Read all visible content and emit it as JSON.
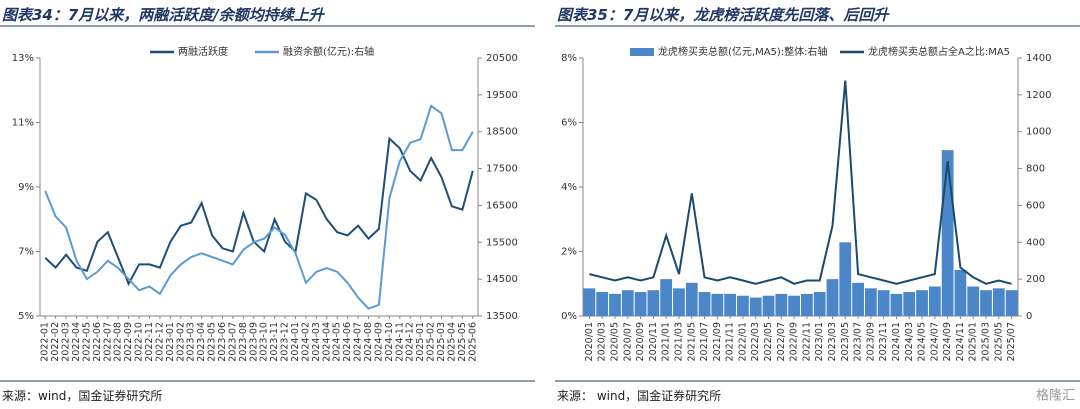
{
  "chart_data": [
    {
      "type": "line",
      "title": "图表34：7月以来，两融活跃度/余额均持续上升",
      "source": "来源：wind，国金证券研究所",
      "categories": [
        "2022-01",
        "2022-02",
        "2022-03",
        "2022-04",
        "2022-05",
        "2022-06",
        "2022-07",
        "2022-08",
        "2022-09",
        "2022-10",
        "2022-11",
        "2022-12",
        "2023-01",
        "2023-02",
        "2023-03",
        "2023-04",
        "2023-05",
        "2023-06",
        "2023-07",
        "2023-08",
        "2023-09",
        "2023-10",
        "2023-11",
        "2023-12",
        "2024-01",
        "2024-02",
        "2024-03",
        "2024-04",
        "2024-05",
        "2024-06",
        "2024-07",
        "2024-08",
        "2024-09",
        "2024-10",
        "2024-11",
        "2024-12",
        "2025-01",
        "2025-02",
        "2025-03",
        "2025-04",
        "2025-05",
        "2025-06"
      ],
      "series": [
        {
          "name": "两融活跃度",
          "color": "#1f4e79",
          "type": "line",
          "axis": "y",
          "values": [
            6.8,
            6.5,
            6.9,
            6.5,
            6.4,
            7.3,
            7.6,
            6.8,
            6.0,
            6.6,
            6.6,
            6.5,
            7.3,
            7.8,
            7.9,
            8.5,
            7.5,
            7.1,
            7.0,
            8.2,
            7.3,
            7.0,
            8.0,
            7.3,
            7.0,
            8.8,
            8.6,
            8.0,
            7.6,
            7.5,
            7.8,
            7.4,
            7.7,
            10.5,
            10.2,
            9.5,
            9.2,
            9.9,
            9.3,
            8.4,
            8.3,
            9.5
          ]
        },
        {
          "name": "融资余额(亿元):右轴",
          "color": "#5b9bd5",
          "type": "line",
          "axis": "y2",
          "values": [
            16900,
            16200,
            15900,
            15000,
            14500,
            14700,
            15000,
            14800,
            14500,
            14200,
            14300,
            14100,
            14600,
            14900,
            15100,
            15200,
            15100,
            15000,
            14900,
            15300,
            15500,
            15600,
            15900,
            15700,
            15200,
            14400,
            14700,
            14800,
            14700,
            14400,
            14000,
            13700,
            13800,
            16700,
            17700,
            18200,
            18300,
            19200,
            19000,
            18000,
            18000,
            18500
          ]
        }
      ],
      "ylim": [
        5,
        13
      ],
      "yticks": [
        {
          "value": 5,
          "label": "5%"
        },
        {
          "value": 7,
          "label": "7%"
        },
        {
          "value": 9,
          "label": "9%"
        },
        {
          "value": 11,
          "label": "11%"
        },
        {
          "value": 13,
          "label": "13%"
        }
      ],
      "y2lim": [
        13500,
        20500
      ],
      "y2ticks": [
        13500,
        14500,
        15500,
        16500,
        17500,
        18500,
        19500,
        20500
      ]
    },
    {
      "type": "bar",
      "title": "图表35：7月以来，龙虎榜活跃度先回落、后回升",
      "source": "来源： wind，国金证券研究所",
      "watermark": "格隆汇",
      "categories": [
        "2020/01",
        "2020/03",
        "2020/05",
        "2020/07",
        "2020/09",
        "2020/11",
        "2021/01",
        "2021/03",
        "2021/05",
        "2021/07",
        "2021/09",
        "2021/11",
        "2022/01",
        "2022/03",
        "2022/05",
        "2022/07",
        "2022/09",
        "2022/11",
        "2023/01",
        "2023/03",
        "2023/05",
        "2023/07",
        "2023/09",
        "2023/11",
        "2024/01",
        "2024/03",
        "2024/05",
        "2024/07",
        "2024/09",
        "2024/11",
        "2025/01",
        "2025/03",
        "2025/05",
        "2025/07"
      ],
      "series": [
        {
          "name": "龙虎榜买卖总额(亿元,MA5):整体:右轴",
          "color": "#4a86c8",
          "type": "bar",
          "axis": "y2",
          "values": [
            150,
            130,
            120,
            140,
            130,
            140,
            200,
            150,
            180,
            130,
            120,
            120,
            110,
            100,
            110,
            120,
            110,
            120,
            130,
            200,
            400,
            180,
            150,
            140,
            120,
            130,
            140,
            160,
            900,
            250,
            160,
            140,
            150,
            140
          ]
        },
        {
          "name": "龙虎榜买卖总额占全A之比:MA5",
          "color": "#1a4a6e",
          "type": "line",
          "axis": "y",
          "values": [
            1.3,
            1.2,
            1.1,
            1.2,
            1.1,
            1.2,
            2.5,
            1.3,
            3.8,
            1.2,
            1.1,
            1.2,
            1.1,
            1.0,
            1.1,
            1.2,
            1.0,
            1.1,
            1.1,
            2.8,
            7.3,
            1.3,
            1.2,
            1.1,
            1.0,
            1.1,
            1.2,
            1.3,
            4.8,
            1.5,
            1.2,
            1.0,
            1.1,
            1.0
          ]
        }
      ],
      "ylim": [
        0,
        8
      ],
      "yticks": [
        {
          "value": 0,
          "label": "0%"
        },
        {
          "value": 2,
          "label": "2%"
        },
        {
          "value": 4,
          "label": "4%"
        },
        {
          "value": 6,
          "label": "6%"
        },
        {
          "value": 8,
          "label": "8%"
        }
      ],
      "y2lim": [
        0,
        1400
      ],
      "y2ticks": [
        0,
        200,
        400,
        600,
        800,
        1000,
        1200,
        1400
      ]
    }
  ]
}
